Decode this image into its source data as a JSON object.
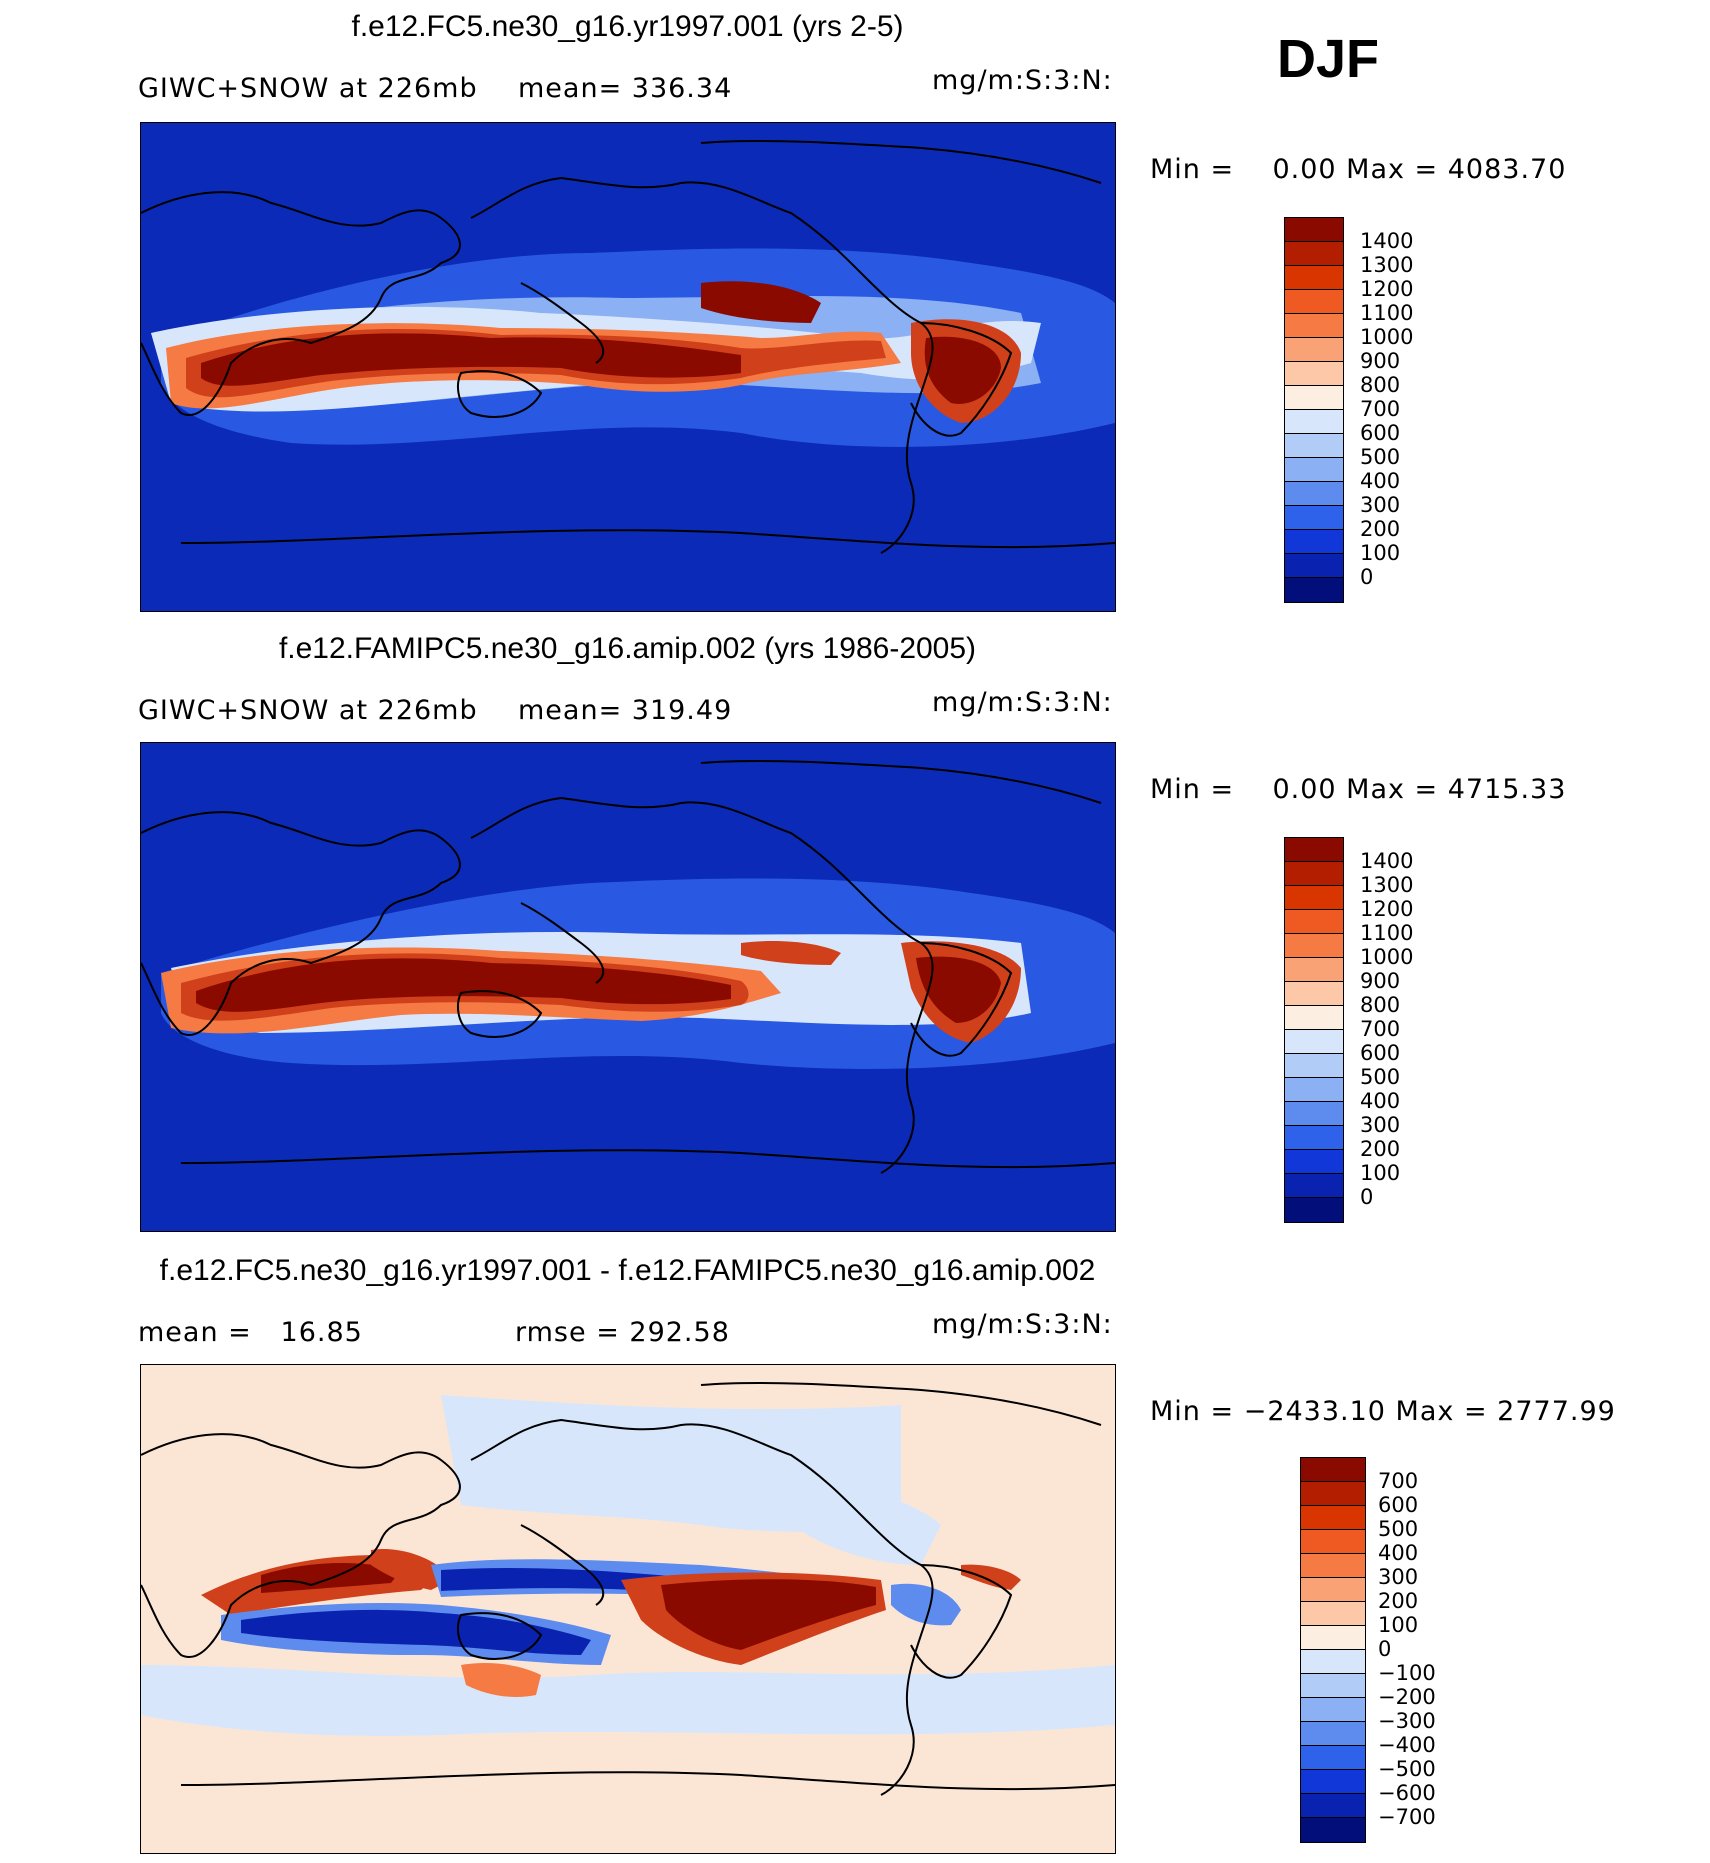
{
  "season": "DJF",
  "panels": [
    {
      "title": "f.e12.FC5.ne30_g16.yr1997.001 (yrs 2-5)",
      "left_label": "GIWC+SNOW at 226mb",
      "mid_label": "mean= 336.34",
      "units": "mg/m:S:3:N:",
      "minmax": "Min =    0.00 Max = 4083.70",
      "colorbar": {
        "labels": [
          "1400",
          "1300",
          "1200",
          "1100",
          "1000",
          "900",
          "800",
          "700",
          "600",
          "500",
          "400",
          "300",
          "200",
          "100",
          "0"
        ],
        "colors": [
          "#8b0a00",
          "#b31d00",
          "#d93500",
          "#ef5a23",
          "#f57a43",
          "#f9a276",
          "#fcc8a8",
          "#fdeee2",
          "#d8e6fb",
          "#b1cdf7",
          "#8bb0f3",
          "#5d8cee",
          "#2f62ea",
          "#1237d8",
          "#0a22b0",
          "#020e7a"
        ]
      },
      "map_background": "#0b2ab8",
      "features": [
        {
          "kind": "band",
          "color": "#4f7cef"
        },
        {
          "kind": "band",
          "color": "#b7d0f7"
        },
        {
          "kind": "band",
          "color": "#f0b58e"
        },
        {
          "kind": "band",
          "color": "#d0401a"
        },
        {
          "kind": "band",
          "color": "#8b0a00"
        }
      ]
    },
    {
      "title": "f.e12.FAMIPC5.ne30_g16.amip.002 (yrs 1986-2005)",
      "left_label": "GIWC+SNOW at 226mb",
      "mid_label": "mean= 319.49",
      "units": "mg/m:S:3:N:",
      "minmax": "Min =    0.00 Max = 4715.33",
      "colorbar": {
        "labels": [
          "1400",
          "1300",
          "1200",
          "1100",
          "1000",
          "900",
          "800",
          "700",
          "600",
          "500",
          "400",
          "300",
          "200",
          "100",
          "0"
        ],
        "colors": [
          "#8b0a00",
          "#b31d00",
          "#d93500",
          "#ef5a23",
          "#f57a43",
          "#f9a276",
          "#fcc8a8",
          "#fdeee2",
          "#d8e6fb",
          "#b1cdf7",
          "#8bb0f3",
          "#5d8cee",
          "#2f62ea",
          "#1237d8",
          "#0a22b0",
          "#020e7a"
        ]
      },
      "map_background": "#0b2ab8"
    },
    {
      "title": "f.e12.FC5.ne30_g16.yr1997.001 - f.e12.FAMIPC5.ne30_g16.amip.002",
      "left_label": "mean =   16.85",
      "mid_label": "rmse = 292.58",
      "units": "mg/m:S:3:N:",
      "minmax": "Min = −2433.10 Max = 2777.99",
      "colorbar": {
        "labels": [
          "700",
          "600",
          "500",
          "400",
          "300",
          "200",
          "100",
          "0",
          "−100",
          "−200",
          "−300",
          "−400",
          "−500",
          "−600",
          "−700"
        ],
        "colors": [
          "#8b0a00",
          "#b31d00",
          "#d93500",
          "#ef5a23",
          "#f57a43",
          "#f9a276",
          "#fcc8a8",
          "#fdeee2",
          "#d8e6fb",
          "#b1cdf7",
          "#8bb0f3",
          "#5d8cee",
          "#2f62ea",
          "#1237d8",
          "#0a22b0",
          "#020e7a"
        ]
      },
      "map_background": "#fbe6d6"
    }
  ]
}
